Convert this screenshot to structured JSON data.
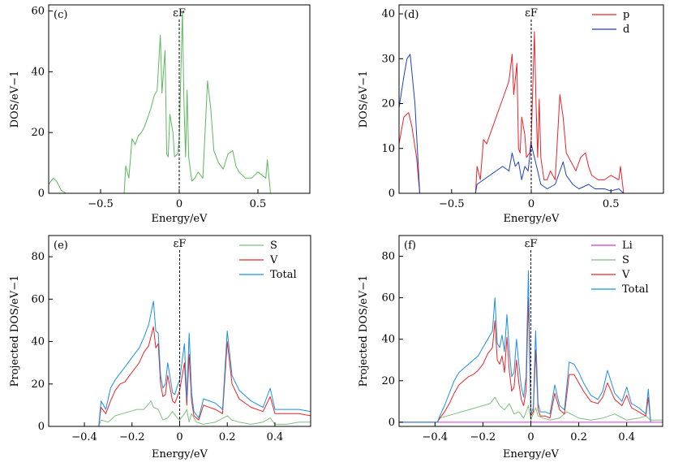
{
  "chart_data": [
    {
      "id": "c",
      "type": "line",
      "panel_label": "(c)",
      "fermi_label": "εF",
      "xlabel": "Energy/eV",
      "ylabel": "DOS/eV−1",
      "xlim": [
        -0.83,
        0.83
      ],
      "ylim": [
        0,
        62
      ],
      "xticks": [
        -0.5,
        0,
        0.5
      ],
      "xtick_labels": [
        "−0.5",
        "0",
        "0.5"
      ],
      "yticks": [
        0,
        20,
        40,
        60
      ],
      "ytick_labels": [
        "0",
        "20",
        "40",
        "60"
      ],
      "legend_position": "none",
      "series": [
        {
          "name": "DOS",
          "color": "#5cb85c",
          "x": [
            -0.83,
            -0.8,
            -0.78,
            -0.75,
            -0.72,
            -0.35,
            -0.34,
            -0.32,
            -0.3,
            -0.28,
            -0.26,
            -0.24,
            -0.22,
            -0.2,
            -0.18,
            -0.16,
            -0.14,
            -0.12,
            -0.11,
            -0.09,
            -0.08,
            -0.07,
            -0.06,
            -0.04,
            -0.03,
            -0.01,
            0.0,
            0.02,
            0.03,
            0.04,
            0.05,
            0.06,
            0.08,
            0.1,
            0.12,
            0.15,
            0.18,
            0.2,
            0.22,
            0.25,
            0.28,
            0.31,
            0.34,
            0.36,
            0.38,
            0.42,
            0.46,
            0.5,
            0.55,
            0.56,
            0.58,
            0.83
          ],
          "y": [
            3,
            5,
            4,
            1,
            0,
            0,
            9,
            5,
            18,
            16,
            19,
            20,
            22,
            25,
            28,
            32,
            34,
            52,
            33,
            47,
            13,
            12,
            26,
            20,
            12,
            13,
            18,
            60,
            30,
            12,
            34,
            12,
            4,
            5,
            7,
            5,
            37,
            28,
            14,
            10,
            8,
            13,
            14,
            9,
            7,
            5,
            5,
            7,
            5,
            11,
            0,
            0
          ]
        }
      ]
    },
    {
      "id": "d",
      "type": "line",
      "panel_label": "(d)",
      "fermi_label": "εF",
      "xlabel": "Energy/eV",
      "ylabel": "DOS/eV−1",
      "xlim": [
        -0.83,
        0.83
      ],
      "ylim": [
        0,
        42
      ],
      "xticks": [
        -0.5,
        0,
        0.5
      ],
      "xtick_labels": [
        "−0.5",
        "0",
        "0.5"
      ],
      "yticks": [
        0,
        10,
        20,
        30,
        40
      ],
      "ytick_labels": [
        "0",
        "10",
        "20",
        "30",
        "40"
      ],
      "legend_position": "top-right",
      "series": [
        {
          "name": "p",
          "color": "#e8242a",
          "x": [
            -0.83,
            -0.8,
            -0.77,
            -0.75,
            -0.72,
            -0.7,
            -0.35,
            -0.34,
            -0.32,
            -0.3,
            -0.28,
            -0.26,
            -0.24,
            -0.22,
            -0.2,
            -0.18,
            -0.16,
            -0.14,
            -0.12,
            -0.11,
            -0.09,
            -0.08,
            -0.07,
            -0.06,
            -0.04,
            -0.03,
            -0.01,
            0.0,
            0.02,
            0.03,
            0.04,
            0.05,
            0.06,
            0.08,
            0.1,
            0.12,
            0.15,
            0.18,
            0.2,
            0.22,
            0.25,
            0.28,
            0.31,
            0.34,
            0.36,
            0.38,
            0.42,
            0.46,
            0.5,
            0.55,
            0.56,
            0.58
          ],
          "y": [
            11,
            17,
            18,
            15,
            8,
            0,
            0,
            6,
            3,
            12,
            11,
            13,
            15,
            17,
            19,
            21,
            23,
            25,
            31,
            22,
            29,
            10,
            9,
            17,
            13,
            8,
            9,
            12,
            36,
            20,
            8,
            21,
            8,
            3,
            3,
            5,
            3,
            22,
            17,
            9,
            7,
            5,
            8,
            9,
            6,
            4,
            3,
            3,
            4,
            3,
            6,
            0
          ]
        },
        {
          "name": "d",
          "color": "#1f3fbf",
          "x": [
            -0.83,
            -0.8,
            -0.78,
            -0.76,
            -0.73,
            -0.7,
            -0.35,
            -0.34,
            -0.3,
            -0.26,
            -0.22,
            -0.18,
            -0.14,
            -0.12,
            -0.1,
            -0.08,
            -0.06,
            -0.04,
            -0.02,
            0.0,
            0.02,
            0.04,
            0.06,
            0.1,
            0.15,
            0.2,
            0.22,
            0.26,
            0.3,
            0.36,
            0.4,
            0.46,
            0.5,
            0.55,
            0.58
          ],
          "y": [
            19,
            26,
            30,
            31,
            20,
            0,
            0,
            2,
            3,
            4,
            5,
            6,
            5,
            9,
            6,
            7,
            3,
            6,
            5,
            11,
            8,
            5,
            2,
            1,
            2,
            7,
            4,
            2,
            1,
            2,
            1,
            1,
            0.5,
            1,
            0
          ]
        }
      ]
    },
    {
      "id": "e",
      "type": "line",
      "panel_label": "(e)",
      "fermi_label": "εF",
      "xlabel": "Energy/eV",
      "ylabel": "Projected DOS/eV−1",
      "xlim": [
        -0.55,
        0.55
      ],
      "ylim": [
        0,
        90
      ],
      "xticks": [
        -0.4,
        -0.2,
        0,
        0.2,
        0.4
      ],
      "xtick_labels": [
        "−0.4",
        "−0.2",
        "0",
        "0.2",
        "0.4"
      ],
      "yticks": [
        0,
        20,
        40,
        60,
        80
      ],
      "ytick_labels": [
        "0",
        "20",
        "40",
        "60",
        "80"
      ],
      "legend_position": "top-right",
      "series": [
        {
          "name": "S",
          "color": "#7fbf7f",
          "x": [
            -0.55,
            -0.34,
            -0.33,
            -0.3,
            -0.27,
            -0.24,
            -0.21,
            -0.18,
            -0.15,
            -0.12,
            -0.11,
            -0.09,
            -0.07,
            -0.05,
            -0.03,
            -0.01,
            0.0,
            0.02,
            0.03,
            0.04,
            0.05,
            0.07,
            0.1,
            0.15,
            0.2,
            0.22,
            0.25,
            0.3,
            0.35,
            0.38,
            0.4,
            0.45,
            0.5,
            0.55
          ],
          "y": [
            0,
            0,
            3,
            2,
            5,
            6,
            7,
            8,
            8,
            12,
            9,
            8,
            3,
            4,
            7,
            4,
            3,
            6,
            8,
            2,
            6,
            2,
            1,
            2,
            5,
            3,
            2,
            1,
            2,
            4,
            1,
            1,
            2,
            2
          ]
        },
        {
          "name": "V",
          "color": "#e8242a",
          "x": [
            -0.55,
            -0.34,
            -0.33,
            -0.31,
            -0.29,
            -0.27,
            -0.25,
            -0.23,
            -0.21,
            -0.19,
            -0.17,
            -0.15,
            -0.13,
            -0.11,
            -0.1,
            -0.09,
            -0.08,
            -0.07,
            -0.06,
            -0.05,
            -0.04,
            -0.03,
            -0.02,
            -0.01,
            0.0,
            0.02,
            0.03,
            0.04,
            0.05,
            0.06,
            0.08,
            0.1,
            0.15,
            0.18,
            0.2,
            0.22,
            0.25,
            0.3,
            0.35,
            0.38,
            0.4,
            0.45,
            0.5,
            0.55
          ],
          "y": [
            0,
            0,
            9,
            6,
            12,
            17,
            20,
            21,
            24,
            27,
            30,
            35,
            38,
            47,
            37,
            39,
            20,
            14,
            15,
            24,
            18,
            12,
            11,
            14,
            17,
            30,
            10,
            34,
            12,
            5,
            3,
            10,
            8,
            6,
            40,
            20,
            13,
            9,
            7,
            14,
            6,
            6,
            6,
            5
          ]
        },
        {
          "name": "Total",
          "color": "#1e8fe0",
          "x": [
            -0.55,
            -0.34,
            -0.33,
            -0.31,
            -0.29,
            -0.27,
            -0.25,
            -0.23,
            -0.21,
            -0.19,
            -0.17,
            -0.15,
            -0.13,
            -0.11,
            -0.1,
            -0.09,
            -0.08,
            -0.07,
            -0.06,
            -0.05,
            -0.04,
            -0.03,
            -0.02,
            -0.01,
            0.0,
            0.02,
            0.03,
            0.04,
            0.05,
            0.06,
            0.08,
            0.1,
            0.15,
            0.18,
            0.2,
            0.22,
            0.25,
            0.3,
            0.35,
            0.38,
            0.4,
            0.45,
            0.5,
            0.55
          ],
          "y": [
            0,
            0,
            12,
            8,
            18,
            22,
            25,
            28,
            31,
            34,
            37,
            42,
            48,
            59,
            45,
            44,
            24,
            18,
            20,
            30,
            23,
            16,
            15,
            19,
            22,
            39,
            13,
            44,
            16,
            7,
            4,
            13,
            11,
            8,
            45,
            24,
            17,
            12,
            9,
            18,
            8,
            8,
            8,
            7
          ]
        }
      ]
    },
    {
      "id": "f",
      "type": "line",
      "panel_label": "(f)",
      "fermi_label": "εF",
      "xlabel": "Energy/eV",
      "ylabel": "Projected DOS/eV−1",
      "xlim": [
        -0.55,
        0.55
      ],
      "ylim": [
        -2,
        90
      ],
      "xticks": [
        -0.4,
        -0.2,
        0,
        0.2,
        0.4
      ],
      "xtick_labels": [
        "−0.4",
        "−0.2",
        "0",
        "0.2",
        "0.4"
      ],
      "yticks": [
        0,
        20,
        40,
        60,
        80
      ],
      "ytick_labels": [
        "0",
        "20",
        "40",
        "60",
        "80"
      ],
      "legend_position": "top-right",
      "series": [
        {
          "name": "Li",
          "color": "#d63ad6",
          "x": [
            -0.55,
            0.55
          ],
          "y": [
            0,
            0
          ]
        },
        {
          "name": "S",
          "color": "#7fbf7f",
          "x": [
            -0.55,
            -0.39,
            -0.38,
            -0.35,
            -0.32,
            -0.29,
            -0.26,
            -0.23,
            -0.2,
            -0.17,
            -0.15,
            -0.13,
            -0.11,
            -0.09,
            -0.07,
            -0.05,
            -0.03,
            -0.01,
            0.0,
            0.02,
            0.03,
            0.05,
            0.08,
            0.12,
            0.15,
            0.2,
            0.25,
            0.3,
            0.35,
            0.4,
            0.45,
            0.48,
            0.5,
            0.55
          ],
          "y": [
            0,
            0,
            2,
            3,
            4,
            5,
            6,
            7,
            8,
            9,
            12,
            8,
            6,
            9,
            4,
            5,
            2,
            8,
            1,
            7,
            3,
            2,
            1,
            2,
            5,
            2,
            1,
            2,
            4,
            1,
            2,
            3,
            1,
            1
          ]
        },
        {
          "name": "V",
          "color": "#e8242a",
          "x": [
            -0.55,
            -0.39,
            -0.38,
            -0.36,
            -0.34,
            -0.32,
            -0.3,
            -0.28,
            -0.26,
            -0.24,
            -0.22,
            -0.2,
            -0.18,
            -0.16,
            -0.15,
            -0.14,
            -0.13,
            -0.12,
            -0.11,
            -0.1,
            -0.09,
            -0.08,
            -0.07,
            -0.06,
            -0.05,
            -0.04,
            -0.03,
            -0.02,
            -0.01,
            0.0,
            0.01,
            0.02,
            0.03,
            0.04,
            0.06,
            0.08,
            0.1,
            0.12,
            0.14,
            0.16,
            0.18,
            0.2,
            0.22,
            0.25,
            0.28,
            0.3,
            0.32,
            0.35,
            0.38,
            0.4,
            0.42,
            0.45,
            0.48,
            0.49,
            0.5
          ],
          "y": [
            0,
            0,
            2,
            5,
            9,
            14,
            18,
            20,
            22,
            23,
            25,
            28,
            33,
            36,
            49,
            30,
            28,
            32,
            24,
            41,
            25,
            15,
            17,
            30,
            19,
            11,
            8,
            15,
            60,
            3,
            5,
            35,
            6,
            3,
            3,
            2,
            14,
            6,
            4,
            23,
            23,
            19,
            15,
            10,
            9,
            12,
            19,
            11,
            8,
            13,
            7,
            5,
            3,
            12,
            0
          ]
        },
        {
          "name": "Total",
          "color": "#1e8fe0",
          "x": [
            -0.55,
            -0.39,
            -0.38,
            -0.36,
            -0.34,
            -0.32,
            -0.3,
            -0.28,
            -0.26,
            -0.24,
            -0.22,
            -0.2,
            -0.18,
            -0.16,
            -0.15,
            -0.14,
            -0.13,
            -0.12,
            -0.11,
            -0.1,
            -0.09,
            -0.08,
            -0.07,
            -0.06,
            -0.05,
            -0.04,
            -0.03,
            -0.02,
            -0.01,
            0.0,
            0.01,
            0.02,
            0.03,
            0.04,
            0.06,
            0.08,
            0.1,
            0.12,
            0.14,
            0.16,
            0.18,
            0.2,
            0.22,
            0.25,
            0.28,
            0.3,
            0.32,
            0.35,
            0.38,
            0.4,
            0.42,
            0.45,
            0.48,
            0.49,
            0.5
          ],
          "y": [
            0,
            0,
            3,
            8,
            14,
            20,
            24,
            26,
            28,
            30,
            32,
            36,
            40,
            44,
            60,
            38,
            36,
            42,
            34,
            52,
            35,
            22,
            24,
            40,
            28,
            17,
            12,
            22,
            73,
            4,
            7,
            44,
            9,
            5,
            5,
            4,
            18,
            8,
            6,
            29,
            28,
            24,
            19,
            13,
            11,
            15,
            25,
            14,
            10,
            17,
            9,
            7,
            4,
            16,
            0
          ]
        }
      ]
    }
  ]
}
